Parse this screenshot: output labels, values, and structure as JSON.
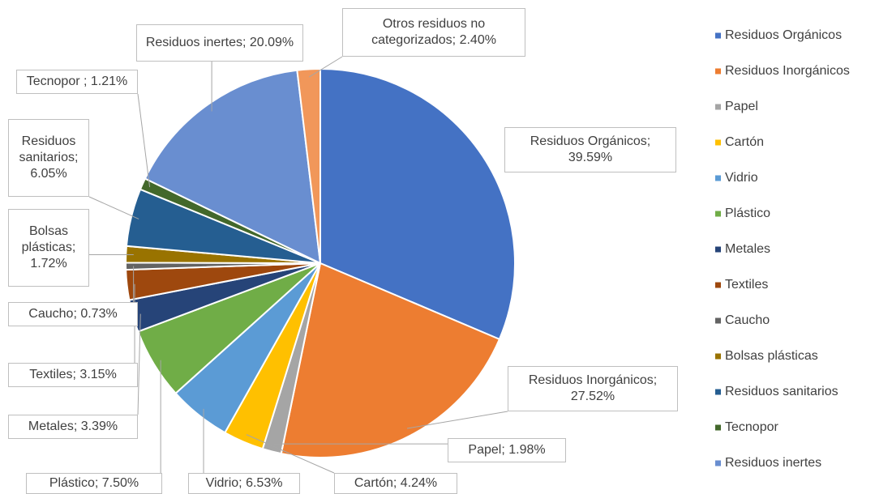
{
  "chart_data": {
    "type": "pie",
    "categories": [
      "Residuos Orgánicos",
      "Residuos Inorgánicos",
      "Papel",
      "Cartón",
      "Vidrio",
      "Plástico",
      "Metales",
      "Textiles",
      "Caucho",
      "Bolsas plásticas",
      "Residuos sanitarios",
      "Tecnopor",
      "Residuos inertes",
      "Otros residuos no categorizados"
    ],
    "values": [
      39.59,
      27.52,
      1.98,
      4.24,
      6.53,
      7.5,
      3.39,
      3.15,
      0.73,
      1.72,
      6.05,
      1.21,
      20.09,
      2.4
    ],
    "value_labels": [
      "Residuos Orgánicos; 39.59%",
      "Residuos Inorgánicos; 27.52%",
      "Papel; 1.98%",
      "Cartón; 4.24%",
      "Vidrio; 6.53%",
      "Plástico; 7.50%",
      "Metales; 3.39%",
      "Textiles; 3.15%",
      "Caucho; 0.73%",
      "Bolsas plásticas; 1.72%",
      "Residuos sanitarios; 6.05%",
      "Tecnopor ; 1.21%",
      "Residuos inertes; 20.09%",
      "Otros residuos no categorizados; 2.40%"
    ],
    "colors": [
      "#4472c4",
      "#ed7d31",
      "#a5a5a5",
      "#ffc000",
      "#5b9bd5",
      "#70ad47",
      "#264478",
      "#9e480e",
      "#636363",
      "#997300",
      "#255e91",
      "#43682b",
      "#698ed0",
      "#f1975a"
    ],
    "legend": "right"
  }
}
